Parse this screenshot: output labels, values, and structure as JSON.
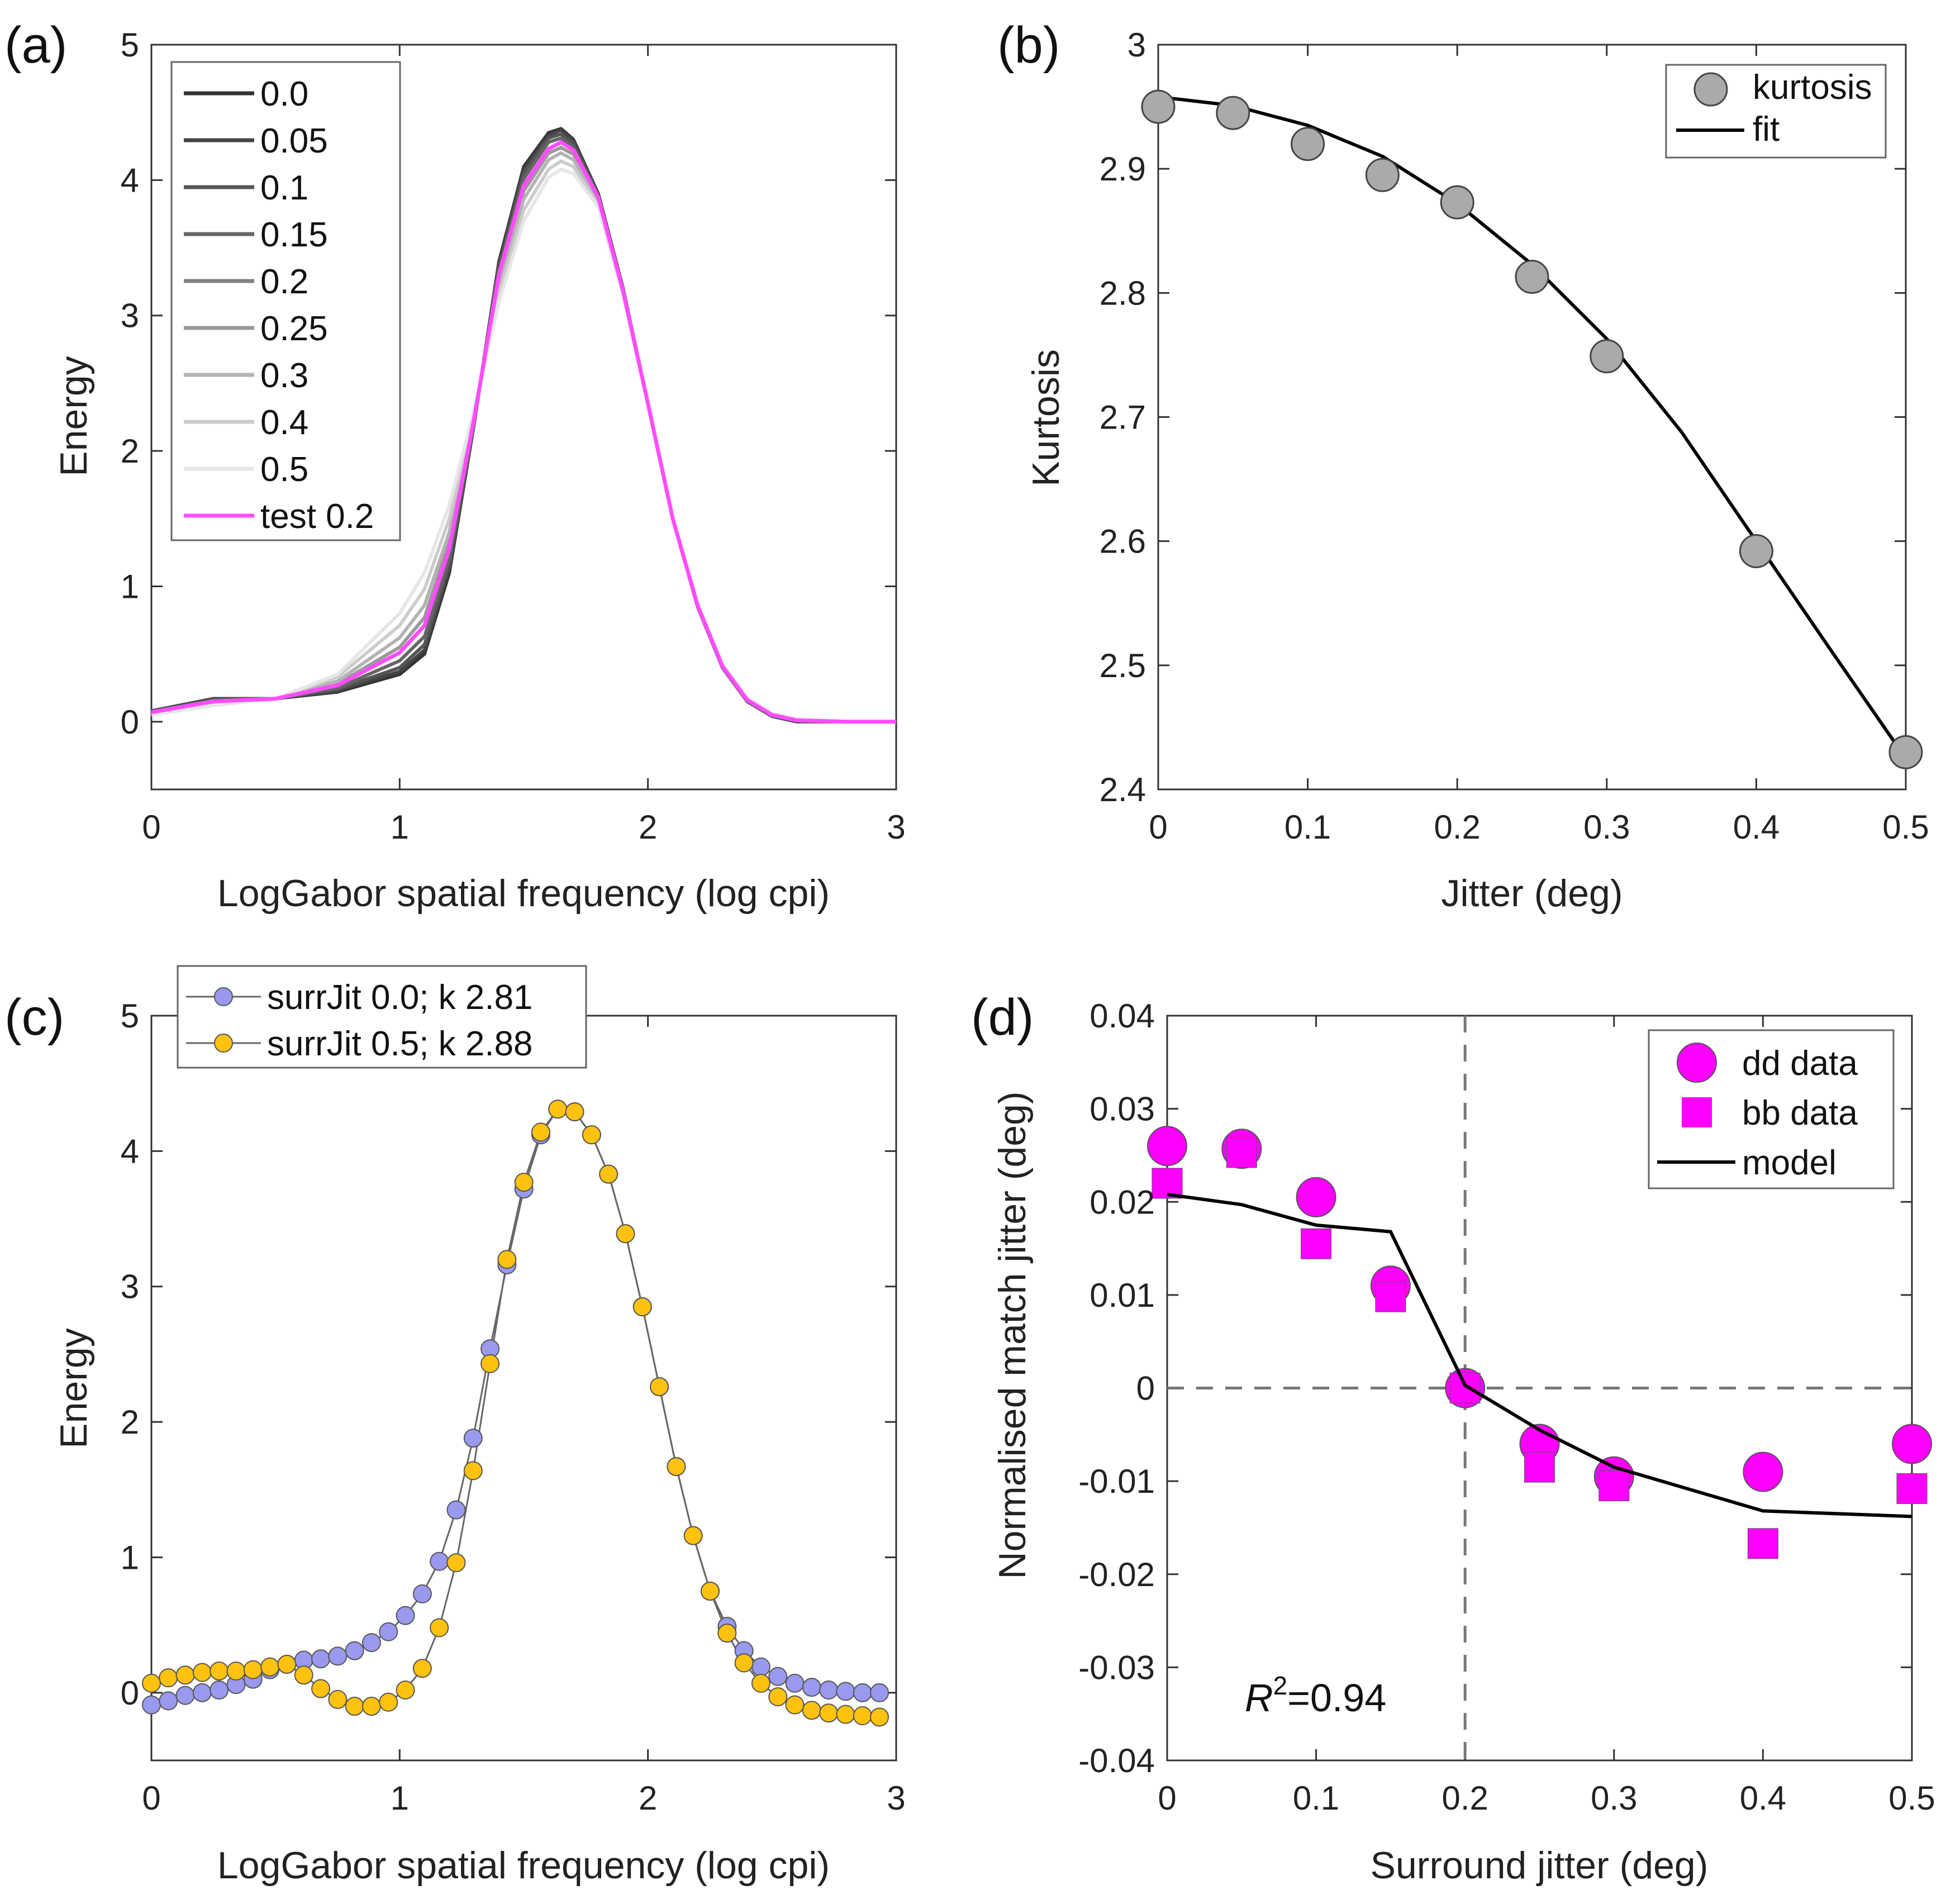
{
  "chart_data": [
    {
      "panel": "(a)",
      "type": "line",
      "xlabel": "LogGabor spatial frequency (log cpi)",
      "ylabel": "Energy",
      "xlim": [
        0,
        3
      ],
      "ylim": [
        -0.5,
        5
      ],
      "xticks": [
        0,
        1,
        2,
        3
      ],
      "yticks": [
        0,
        1,
        2,
        3,
        4,
        5
      ],
      "grid": false,
      "legend_position": "top-left",
      "x": [
        0,
        0.25,
        0.5,
        0.75,
        1.0,
        1.1,
        1.2,
        1.3,
        1.4,
        1.5,
        1.6,
        1.65,
        1.7,
        1.8,
        1.9,
        2.0,
        2.1,
        2.2,
        2.3,
        2.4,
        2.5,
        2.6,
        2.8,
        3.0
      ],
      "series": [
        {
          "name": "0.0",
          "color": "#333333",
          "values": [
            0.08,
            0.17,
            0.17,
            0.22,
            0.35,
            0.5,
            1.1,
            2.2,
            3.4,
            4.1,
            4.35,
            4.38,
            4.3,
            3.9,
            3.2,
            2.35,
            1.5,
            0.85,
            0.4,
            0.15,
            0.04,
            0,
            0,
            0
          ]
        },
        {
          "name": "0.05",
          "color": "#444444",
          "values": [
            0.08,
            0.17,
            0.17,
            0.23,
            0.37,
            0.53,
            1.13,
            2.21,
            3.39,
            4.08,
            4.33,
            4.37,
            4.29,
            3.9,
            3.2,
            2.35,
            1.5,
            0.85,
            0.4,
            0.15,
            0.04,
            0,
            0,
            0
          ]
        },
        {
          "name": "0.1",
          "color": "#555555",
          "values": [
            0.08,
            0.16,
            0.17,
            0.24,
            0.4,
            0.57,
            1.16,
            2.21,
            3.36,
            4.05,
            4.31,
            4.34,
            4.27,
            3.89,
            3.19,
            2.35,
            1.5,
            0.85,
            0.4,
            0.15,
            0.04,
            0.01,
            0,
            0
          ]
        },
        {
          "name": "0.15",
          "color": "#666666",
          "values": [
            0.07,
            0.16,
            0.17,
            0.25,
            0.45,
            0.63,
            1.21,
            2.22,
            3.33,
            4.01,
            4.28,
            4.31,
            4.24,
            3.88,
            3.19,
            2.35,
            1.5,
            0.86,
            0.41,
            0.16,
            0.05,
            0.01,
            0,
            0
          ]
        },
        {
          "name": "0.2",
          "color": "#808080",
          "values": [
            0.07,
            0.15,
            0.17,
            0.27,
            0.51,
            0.71,
            1.28,
            2.24,
            3.3,
            3.96,
            4.23,
            4.28,
            4.22,
            3.87,
            3.18,
            2.35,
            1.5,
            0.86,
            0.41,
            0.16,
            0.05,
            0.01,
            0,
            0
          ]
        },
        {
          "name": "0.25",
          "color": "#999999",
          "values": [
            0.07,
            0.15,
            0.17,
            0.28,
            0.55,
            0.77,
            1.33,
            2.25,
            3.27,
            3.92,
            4.2,
            4.24,
            4.19,
            3.86,
            3.18,
            2.35,
            1.5,
            0.86,
            0.41,
            0.17,
            0.05,
            0.01,
            0,
            0
          ]
        },
        {
          "name": "0.3",
          "color": "#b3b3b3",
          "values": [
            0.06,
            0.14,
            0.17,
            0.3,
            0.62,
            0.86,
            1.4,
            2.26,
            3.22,
            3.86,
            4.15,
            4.2,
            4.15,
            3.84,
            3.17,
            2.35,
            1.5,
            0.87,
            0.42,
            0.17,
            0.06,
            0.02,
            0,
            0
          ]
        },
        {
          "name": "0.4",
          "color": "#cccccc",
          "values": [
            0.06,
            0.13,
            0.17,
            0.33,
            0.71,
            0.98,
            1.5,
            2.28,
            3.16,
            3.78,
            4.08,
            4.14,
            4.1,
            3.82,
            3.16,
            2.35,
            1.5,
            0.87,
            0.42,
            0.18,
            0.06,
            0.02,
            0,
            0
          ]
        },
        {
          "name": "0.5",
          "color": "#e6e6e6",
          "values": [
            0.05,
            0.12,
            0.17,
            0.35,
            0.8,
            1.1,
            1.6,
            2.3,
            3.1,
            3.7,
            4.02,
            4.08,
            4.05,
            3.8,
            3.15,
            2.35,
            1.5,
            0.87,
            0.42,
            0.18,
            0.06,
            0.02,
            0,
            0
          ]
        },
        {
          "name": "test 0.2",
          "color": "#ff4dff",
          "values": [
            0.07,
            0.15,
            0.17,
            0.27,
            0.51,
            0.71,
            1.28,
            2.24,
            3.3,
            3.96,
            4.23,
            4.28,
            4.22,
            3.87,
            3.18,
            2.35,
            1.5,
            0.86,
            0.41,
            0.16,
            0.05,
            0.01,
            0,
            0
          ]
        }
      ]
    },
    {
      "panel": "(b)",
      "type": "scatter",
      "xlabel": "Jitter (deg)",
      "ylabel": "Kurtosis",
      "xlim": [
        0,
        0.5
      ],
      "ylim": [
        2.4,
        3
      ],
      "xticks": [
        0,
        0.1,
        0.2,
        0.3,
        0.4,
        0.5
      ],
      "yticks": [
        2.4,
        2.5,
        2.6,
        2.7,
        2.8,
        2.9,
        3
      ],
      "grid": false,
      "legend_position": "top-right",
      "series": [
        {
          "name": "kurtosis",
          "color": "#aaaaaa",
          "x": [
            0,
            0.05,
            0.1,
            0.15,
            0.2,
            0.25,
            0.3,
            0.4,
            0.5
          ],
          "values": [
            2.95,
            2.945,
            2.92,
            2.895,
            2.873,
            2.813,
            2.749,
            2.592,
            2.43
          ]
        },
        {
          "name": "fit",
          "color": "#000000",
          "x": [
            0,
            0.05,
            0.1,
            0.15,
            0.2,
            0.25,
            0.3,
            0.35,
            0.4,
            0.45,
            0.5
          ],
          "values": [
            2.958,
            2.951,
            2.935,
            2.91,
            2.872,
            2.823,
            2.763,
            2.688,
            2.6,
            2.512,
            2.425
          ]
        }
      ]
    },
    {
      "panel": "(c)",
      "type": "line",
      "xlabel": "LogGabor spatial frequency (log cpi)",
      "ylabel": "Energy",
      "xlim": [
        0,
        3
      ],
      "ylim": [
        -0.5,
        5
      ],
      "xticks": [
        0,
        1,
        2,
        3
      ],
      "yticks": [
        0,
        1,
        2,
        3,
        4,
        5
      ],
      "grid": false,
      "legend_position": "top-left",
      "x_start": 0,
      "x_step": 0.0682,
      "series": [
        {
          "name": "surrJit 0.0;  k 2.81",
          "color": "#9999ee",
          "values": [
            -0.09,
            -0.06,
            -0.02,
            0,
            0.02,
            0.06,
            0.1,
            0.17,
            0.21,
            0.24,
            0.25,
            0.27,
            0.31,
            0.37,
            0.45,
            0.57,
            0.73,
            0.97,
            1.35,
            1.88,
            2.54,
            3.16,
            3.72,
            4.12,
            4.31,
            4.29,
            4.12,
            3.83,
            3.39,
            2.85,
            2.26,
            1.67,
            1.16,
            0.75,
            0.49,
            0.31,
            0.19,
            0.12,
            0.07,
            0.04,
            0.02,
            0.01,
            0,
            0
          ]
        },
        {
          "name": "surrJit 0.5;  k 2.88",
          "color": "#ffc20e",
          "values": [
            0.07,
            0.11,
            0.13,
            0.15,
            0.16,
            0.16,
            0.17,
            0.19,
            0.21,
            0.13,
            0.03,
            -0.05,
            -0.1,
            -0.1,
            -0.07,
            0.02,
            0.18,
            0.48,
            0.96,
            1.64,
            2.43,
            3.2,
            3.77,
            4.14,
            4.31,
            4.29,
            4.12,
            3.83,
            3.39,
            2.85,
            2.26,
            1.67,
            1.16,
            0.75,
            0.44,
            0.22,
            0.07,
            -0.03,
            -0.09,
            -0.13,
            -0.15,
            -0.16,
            -0.17,
            -0.18
          ]
        }
      ]
    },
    {
      "panel": "(d)",
      "type": "scatter",
      "xlabel": "Surround jitter (deg)",
      "ylabel": "Normalised match jitter (deg)",
      "xlim": [
        0,
        0.5
      ],
      "ylim": [
        -0.04,
        0.04
      ],
      "xticks": [
        0,
        0.1,
        0.2,
        0.3,
        0.4,
        0.5
      ],
      "yticks": [
        -0.04,
        -0.03,
        -0.02,
        -0.01,
        0,
        0.01,
        0.02,
        0.03,
        0.04
      ],
      "ytick_labels": [
        "-0.04",
        "-0.03",
        "-0.02",
        "-0.01",
        "0",
        "0.01",
        "0.02",
        "0.03",
        "0.04"
      ],
      "grid": false,
      "legend_position": "top-right",
      "reference_lines": {
        "x": 0.2,
        "y": 0
      },
      "annotation": {
        "r2_label": "R",
        "r2_sup": "2",
        "r2_value": "=0.94"
      },
      "x": [
        0,
        0.05,
        0.1,
        0.15,
        0.2,
        0.25,
        0.3,
        0.4,
        0.5
      ],
      "series": [
        {
          "name": "dd data",
          "marker": "circle",
          "color": "#ff00ff",
          "values": [
            0.026,
            0.0257,
            0.0205,
            0.011,
            0.0,
            -0.006,
            -0.0095,
            -0.009,
            -0.006
          ]
        },
        {
          "name": "bb data",
          "marker": "square",
          "color": "#ff00ff",
          "values": [
            0.022,
            0.0253,
            0.0155,
            0.0098,
            0.0,
            -0.0085,
            -0.0105,
            -0.0167,
            -0.0108
          ]
        },
        {
          "name": "model",
          "marker": "line",
          "color": "#000000",
          "values": [
            0.0208,
            0.0197,
            0.0175,
            0.0168,
            0.0003,
            -0.0045,
            -0.0085,
            -0.0132,
            -0.0138
          ]
        }
      ]
    }
  ]
}
